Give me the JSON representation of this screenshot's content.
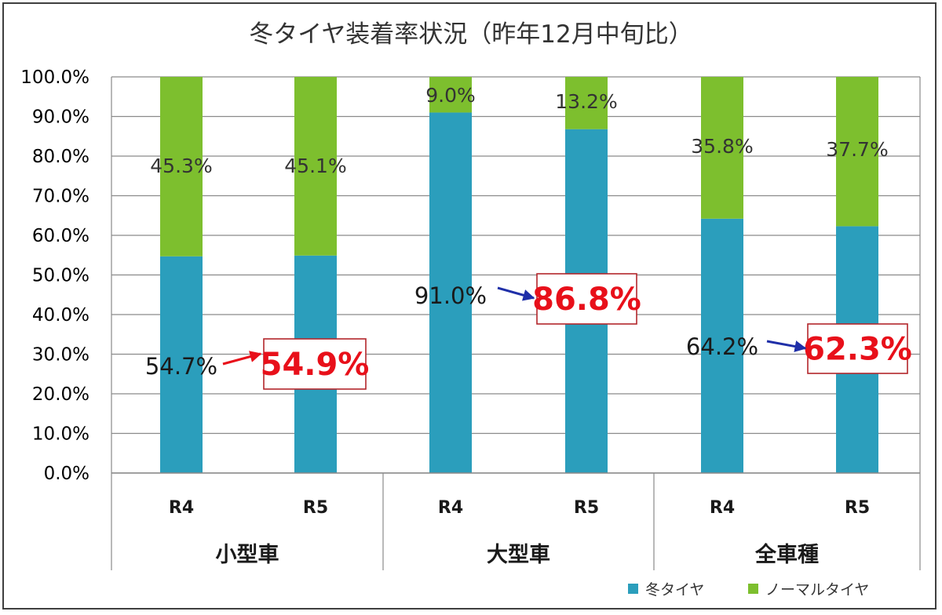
{
  "chart_data": {
    "type": "bar",
    "stacked": true,
    "title": "冬タイヤ装着率状況（昨年12月中旬比）",
    "ylim": [
      0,
      100
    ],
    "yticks": [
      "0.0%",
      "10.0%",
      "20.0%",
      "30.0%",
      "40.0%",
      "50.0%",
      "60.0%",
      "70.0%",
      "80.0%",
      "90.0%",
      "100.0%"
    ],
    "categories": [
      {
        "group": "小型車",
        "year": "R4"
      },
      {
        "group": "小型車",
        "year": "R5"
      },
      {
        "group": "大型車",
        "year": "R4"
      },
      {
        "group": "大型車",
        "year": "R5"
      },
      {
        "group": "全車種",
        "year": "R4"
      },
      {
        "group": "全車種",
        "year": "R5"
      }
    ],
    "groups": [
      "小型車",
      "大型車",
      "全車種"
    ],
    "series": [
      {
        "name": "冬タイヤ",
        "color": "#2b9ebc",
        "values": [
          54.7,
          54.9,
          91.0,
          86.8,
          64.2,
          62.3
        ]
      },
      {
        "name": "ノーマルタイヤ",
        "color": "#7dbf2e",
        "values": [
          45.3,
          45.1,
          9.0,
          13.2,
          35.8,
          37.7
        ]
      }
    ],
    "data_labels": {
      "winter": [
        "54.7%",
        "54.9%",
        "91.0%",
        "86.8%",
        "64.2%",
        "62.3%"
      ],
      "normal": [
        "45.3%",
        "45.1%",
        "9.0%",
        "13.2%",
        "35.8%",
        "37.7%"
      ]
    },
    "highlight_color": "#e8101a",
    "arrow_colors": [
      "#e8101a",
      "#1f2fa8",
      "#1f2fa8"
    ],
    "grid": true,
    "legend": "bottom-right"
  }
}
